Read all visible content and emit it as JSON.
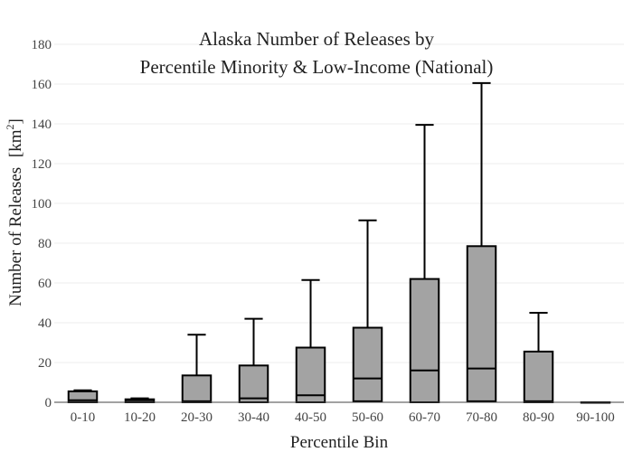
{
  "chart_data": {
    "type": "box",
    "title_line1": "Alaska Number of Releases by",
    "title_line2": "Percentile Minority & Low-Income (National)",
    "xlabel": "Percentile Bin",
    "ylabel": "Number of Releases",
    "ylabel_unit_prefix": "[km",
    "ylabel_unit_sup": "2",
    "ylabel_unit_suffix": "]",
    "ylim": [
      0,
      180
    ],
    "yticks": [
      0,
      20,
      40,
      60,
      80,
      100,
      120,
      140,
      160,
      180
    ],
    "grid": true,
    "categories": [
      "0-10",
      "10-20",
      "20-30",
      "30-40",
      "40-50",
      "50-60",
      "60-70",
      "70-80",
      "80-90",
      "90-100"
    ],
    "boxes": [
      {
        "min": 0,
        "q1": 0,
        "median": 1,
        "q3": 5.5,
        "max": 6
      },
      {
        "min": 0,
        "q1": 0,
        "median": 1,
        "q3": 1.5,
        "max": 2
      },
      {
        "min": 0,
        "q1": 0,
        "median": 0.5,
        "q3": 13.5,
        "max": 34
      },
      {
        "min": 0,
        "q1": 0,
        "median": 2,
        "q3": 18.5,
        "max": 42
      },
      {
        "min": 0,
        "q1": 0,
        "median": 3.5,
        "q3": 27.5,
        "max": 61.5
      },
      {
        "min": 0,
        "q1": 0.5,
        "median": 12,
        "q3": 37.5,
        "max": 91.5
      },
      {
        "min": 0,
        "q1": 0,
        "median": 16,
        "q3": 62,
        "max": 139.5
      },
      {
        "min": 0,
        "q1": 0.5,
        "median": 17,
        "q3": 78.5,
        "max": 160.5
      },
      {
        "min": 0,
        "q1": 0,
        "median": 0.5,
        "q3": 25.5,
        "max": 45
      },
      {
        "min": 0,
        "q1": 0,
        "median": 0,
        "q3": 0,
        "max": 0
      }
    ],
    "box_color": "#a3a3a3",
    "line_color": "#000000",
    "grid_color": "#eeeeee",
    "axis_color": "#444444"
  }
}
